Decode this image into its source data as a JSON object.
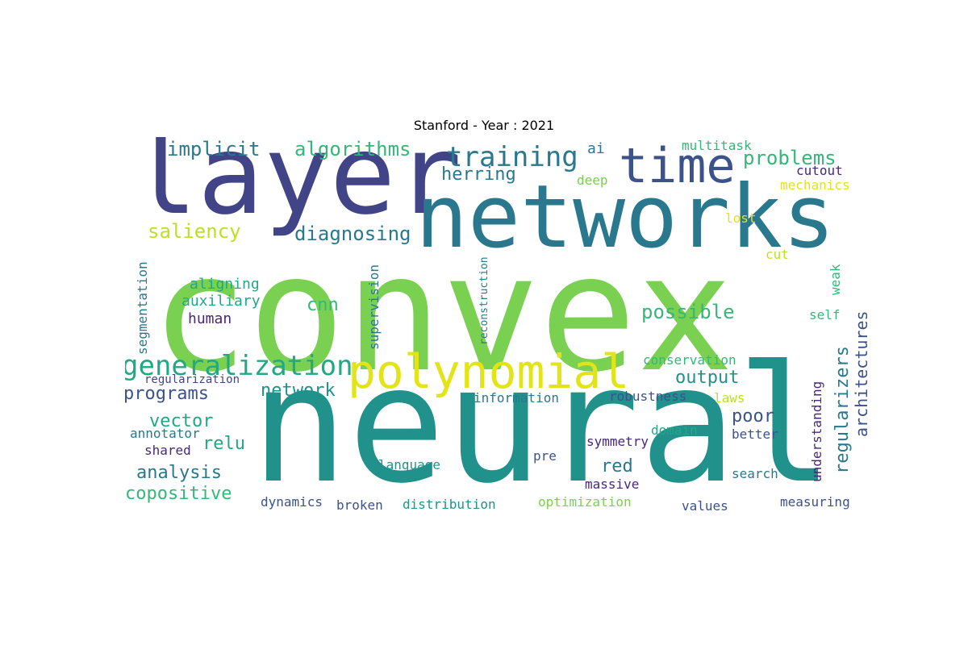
{
  "title": "Stanford - Year : 2021",
  "words": [
    {
      "text": "convex",
      "color": "#7ad151",
      "vertical": false
    },
    {
      "text": "neural",
      "color": "#21918c",
      "vertical": false
    },
    {
      "text": "layer",
      "color": "#414487",
      "vertical": false
    },
    {
      "text": "networks",
      "color": "#2a788e",
      "vertical": false
    },
    {
      "text": "polynomial",
      "color": "#e2e418",
      "vertical": false
    },
    {
      "text": "time",
      "color": "#3b528b",
      "vertical": false
    },
    {
      "text": "training",
      "color": "#2a788e",
      "vertical": false
    },
    {
      "text": "generalization",
      "color": "#22a884",
      "vertical": false
    },
    {
      "text": "implicit",
      "color": "#2a788e",
      "vertical": false
    },
    {
      "text": "algorithms",
      "color": "#35b779",
      "vertical": false
    },
    {
      "text": "herring",
      "color": "#2a788e",
      "vertical": false
    },
    {
      "text": "problems",
      "color": "#35b779",
      "vertical": false
    },
    {
      "text": "ai",
      "color": "#2a788e",
      "vertical": false
    },
    {
      "text": "multitask",
      "color": "#35b779",
      "vertical": false
    },
    {
      "text": "cutout",
      "color": "#482878",
      "vertical": false
    },
    {
      "text": "mechanics",
      "color": "#e2e418",
      "vertical": false
    },
    {
      "text": "deep",
      "color": "#7ad151",
      "vertical": false
    },
    {
      "text": "lost",
      "color": "#e2e418",
      "vertical": false
    },
    {
      "text": "saliency",
      "color": "#bddf26",
      "vertical": false
    },
    {
      "text": "diagnosing",
      "color": "#2a788e",
      "vertical": false
    },
    {
      "text": "cut",
      "color": "#bddf26",
      "vertical": false
    },
    {
      "text": "weak",
      "color": "#35b779",
      "vertical": true
    },
    {
      "text": "self",
      "color": "#35b779",
      "vertical": false
    },
    {
      "text": "aligning",
      "color": "#22a884",
      "vertical": false
    },
    {
      "text": "auxiliary",
      "color": "#22a884",
      "vertical": false
    },
    {
      "text": "human",
      "color": "#482878",
      "vertical": false
    },
    {
      "text": "cnn",
      "color": "#35b779",
      "vertical": false
    },
    {
      "text": "possible",
      "color": "#35b779",
      "vertical": false
    },
    {
      "text": "architectures",
      "color": "#3b528b",
      "vertical": true
    },
    {
      "text": "regularizers",
      "color": "#2a788e",
      "vertical": true
    },
    {
      "text": "segmentation",
      "color": "#2a788e",
      "vertical": true
    },
    {
      "text": "supervision",
      "color": "#2a788e",
      "vertical": true
    },
    {
      "text": "reconstruction",
      "color": "#2a788e",
      "vertical": true
    },
    {
      "text": "conservation",
      "color": "#35b779",
      "vertical": false
    },
    {
      "text": "output",
      "color": "#21918c",
      "vertical": false
    },
    {
      "text": "regularization",
      "color": "#414487",
      "vertical": false
    },
    {
      "text": "programs",
      "color": "#3b528b",
      "vertical": false
    },
    {
      "text": "network",
      "color": "#21918c",
      "vertical": false
    },
    {
      "text": "information",
      "color": "#2a788e",
      "vertical": false
    },
    {
      "text": "robustness",
      "color": "#3b528b",
      "vertical": false
    },
    {
      "text": "laws",
      "color": "#bddf26",
      "vertical": false
    },
    {
      "text": "understanding",
      "color": "#482878",
      "vertical": true
    },
    {
      "text": "vector",
      "color": "#22a884",
      "vertical": false
    },
    {
      "text": "poor",
      "color": "#3b528b",
      "vertical": false
    },
    {
      "text": "annotator",
      "color": "#2a788e",
      "vertical": false
    },
    {
      "text": "relu",
      "color": "#22a884",
      "vertical": false
    },
    {
      "text": "shared",
      "color": "#482878",
      "vertical": false
    },
    {
      "text": "domain",
      "color": "#22a884",
      "vertical": false
    },
    {
      "text": "better",
      "color": "#3b528b",
      "vertical": false
    },
    {
      "text": "symmetry",
      "color": "#482878",
      "vertical": false
    },
    {
      "text": "analysis",
      "color": "#2a788e",
      "vertical": false
    },
    {
      "text": "red",
      "color": "#2a788e",
      "vertical": false
    },
    {
      "text": "pre",
      "color": "#3b528b",
      "vertical": false
    },
    {
      "text": "language",
      "color": "#21918c",
      "vertical": false
    },
    {
      "text": "search",
      "color": "#2a788e",
      "vertical": false
    },
    {
      "text": "copositive",
      "color": "#35b779",
      "vertical": false
    },
    {
      "text": "massive",
      "color": "#482878",
      "vertical": false
    },
    {
      "text": "dynamics",
      "color": "#3b528b",
      "vertical": false
    },
    {
      "text": "broken",
      "color": "#3b528b",
      "vertical": false
    },
    {
      "text": "distribution",
      "color": "#21918c",
      "vertical": false
    },
    {
      "text": "optimization",
      "color": "#7ad151",
      "vertical": false
    },
    {
      "text": "values",
      "color": "#3b528b",
      "vertical": false
    },
    {
      "text": "measuring",
      "color": "#3b528b",
      "vertical": false
    }
  ]
}
